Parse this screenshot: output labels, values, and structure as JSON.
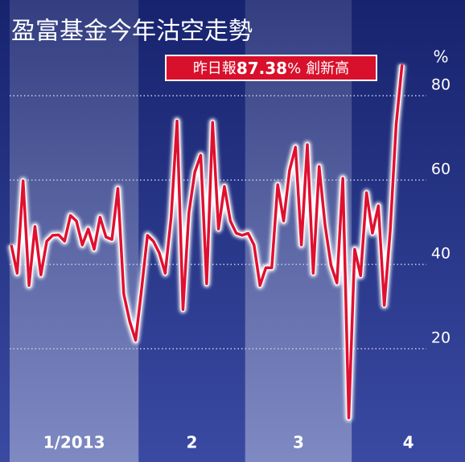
{
  "chart_data": {
    "type": "line",
    "title": "盈富基金今年沽空走勢",
    "annotation": [
      "昨日報",
      "87.38",
      "%",
      "創新高"
    ],
    "unit": "%",
    "values": [
      44.6,
      37.9,
      59.8,
      35,
      49,
      37.5,
      45.5,
      46.9,
      47,
      45.5,
      51.6,
      50.3,
      44.6,
      48.4,
      43.6,
      51.2,
      46.5,
      45.9,
      58,
      33,
      26.5,
      22,
      34,
      46.9,
      45.5,
      42.7,
      37.9,
      51.2,
      74,
      29.3,
      52.2,
      61.9,
      65.9,
      35.4,
      73.7,
      48.4,
      58.5,
      50.3,
      47.4,
      46.9,
      47.4,
      44.6,
      35,
      39.2,
      39.2,
      58.9,
      50.3,
      62.3,
      67.8,
      44.6,
      68.4,
      37.9,
      63.2,
      49.3,
      39.8,
      35.6,
      60.4,
      3.6,
      43.6,
      37.3,
      57,
      47.4,
      53.9,
      30.3,
      48,
      73.1,
      87.38
    ],
    "months": [
      {
        "label": "1/2013",
        "count": 22
      },
      {
        "label": "2",
        "count": 18
      },
      {
        "label": "3",
        "count": 18
      },
      {
        "label": "4",
        "count": 9
      }
    ],
    "color": "#e01030",
    "ylim": [
      0,
      102.7
    ],
    "yticks": [
      20,
      40,
      60,
      80
    ],
    "grid": true
  }
}
